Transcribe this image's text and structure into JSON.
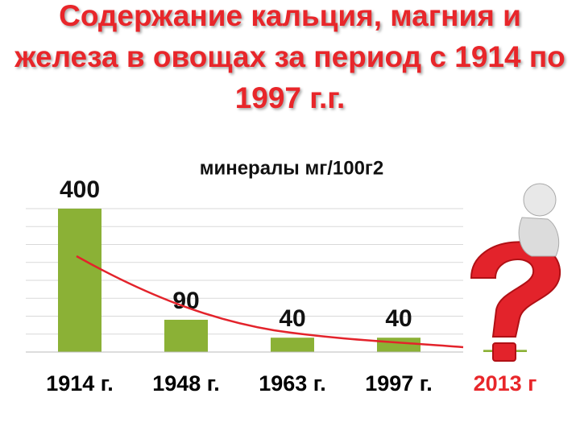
{
  "chart_data": {
    "type": "bar",
    "title": "Содержание кальция, магния и железа в овощах за период с 1914 по 1997 г.г.",
    "subtitle": "минералы мг/100г2",
    "categories": [
      "1914 г.",
      "1948 г.",
      "1963 г.",
      "1997 г.",
      "2013 г"
    ],
    "category_label_colors": [
      "#000000",
      "#000000",
      "#000000",
      "#000000",
      "#e8262a"
    ],
    "values": [
      400,
      90,
      40,
      40,
      6
    ],
    "value_labels": [
      "400",
      "90",
      "40",
      "40",
      null
    ],
    "color": "#8bb136",
    "ylim": [
      0,
      400
    ],
    "yticks": [
      0,
      50,
      100,
      150,
      200,
      250,
      300,
      350,
      400
    ],
    "grid": true
  }
}
